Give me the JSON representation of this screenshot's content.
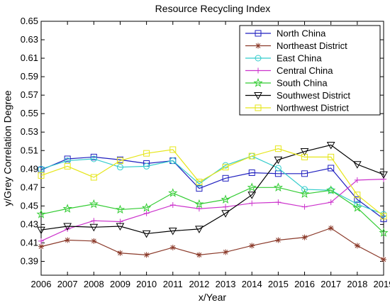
{
  "chart_data": {
    "type": "line",
    "title": "Resource Recycling Index",
    "xlabel": "x/Year",
    "ylabel": "y/Grey Correlation Degree",
    "x": [
      2006,
      2007,
      2008,
      2009,
      2010,
      2011,
      2012,
      2013,
      2014,
      2015,
      2016,
      2017,
      2018,
      2019
    ],
    "xlim": [
      2006,
      2019
    ],
    "ylim": [
      0.375,
      0.65
    ],
    "yticks": [
      0.39,
      0.41,
      0.43,
      0.45,
      0.47,
      0.49,
      0.51,
      0.53,
      0.55,
      0.57,
      0.59,
      0.61,
      0.63,
      0.65
    ],
    "ytick_labels": [
      "0.39",
      "0.41",
      "0.43",
      "0.45",
      "0.47",
      "0.49",
      "0.51",
      "0.53",
      "0.55",
      "0.57",
      "0.59",
      "0.61",
      "0.63",
      "0.65"
    ],
    "xtick_labels": [
      "2006",
      "2007",
      "2008",
      "2009",
      "2010",
      "2011",
      "2012",
      "2013",
      "2014",
      "2015",
      "2016",
      "2017",
      "2018",
      "2019"
    ],
    "grid": false,
    "legend_position": "top-right",
    "series": [
      {
        "name": "North China",
        "color": "#1f1fbf",
        "marker": "square",
        "values": [
          0.489,
          0.501,
          0.503,
          0.5,
          0.496,
          0.499,
          0.469,
          0.48,
          0.486,
          0.485,
          0.485,
          0.491,
          0.457,
          0.436
        ]
      },
      {
        "name": "Northeast District",
        "color": "#8b3a2a",
        "marker": "asterisk",
        "values": [
          0.406,
          0.413,
          0.412,
          0.399,
          0.397,
          0.405,
          0.397,
          0.4,
          0.407,
          0.413,
          0.416,
          0.426,
          0.407,
          0.392
        ]
      },
      {
        "name": "East China",
        "color": "#33cccc",
        "marker": "circle",
        "values": [
          0.49,
          0.499,
          0.501,
          0.492,
          0.493,
          0.499,
          0.474,
          0.494,
          0.504,
          0.491,
          0.468,
          0.467,
          0.452,
          0.441
        ]
      },
      {
        "name": "Central China",
        "color": "#cc33cc",
        "marker": "plus",
        "values": [
          0.412,
          0.425,
          0.434,
          0.433,
          0.442,
          0.451,
          0.447,
          0.449,
          0.453,
          0.454,
          0.449,
          0.454,
          0.478,
          0.479
        ]
      },
      {
        "name": "South China",
        "color": "#33cc33",
        "marker": "star",
        "values": [
          0.441,
          0.447,
          0.452,
          0.446,
          0.448,
          0.464,
          0.452,
          0.457,
          0.47,
          0.47,
          0.463,
          0.467,
          0.448,
          0.421
        ]
      },
      {
        "name": "Southwest District",
        "color": "#000000",
        "marker": "triangle-down",
        "values": [
          0.424,
          0.428,
          0.427,
          0.428,
          0.42,
          0.423,
          0.425,
          0.442,
          0.462,
          0.5,
          0.509,
          0.516,
          0.495,
          0.484
        ]
      },
      {
        "name": "Northwest District",
        "color": "#e6e61a",
        "marker": "square",
        "values": [
          0.483,
          0.493,
          0.481,
          0.499,
          0.507,
          0.511,
          0.476,
          0.492,
          0.504,
          0.512,
          0.503,
          0.503,
          0.462,
          0.439
        ]
      }
    ]
  }
}
